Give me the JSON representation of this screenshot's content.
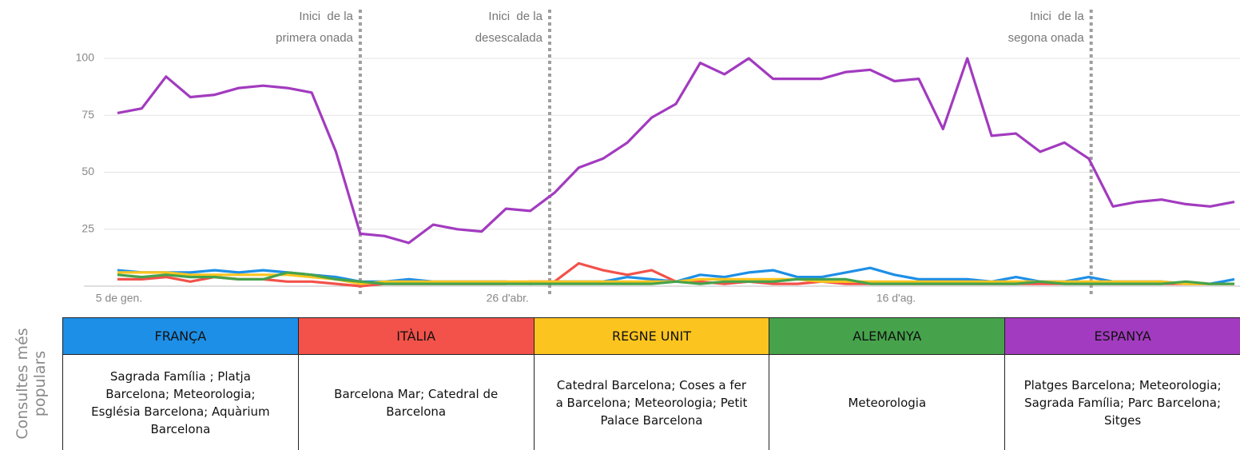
{
  "chart_data": {
    "type": "line",
    "categories": [
      "5 de gen.",
      null,
      null,
      null,
      null,
      null,
      null,
      null,
      null,
      null,
      null,
      null,
      null,
      null,
      null,
      null,
      "26 d'abr.",
      null,
      null,
      null,
      null,
      null,
      null,
      null,
      null,
      null,
      null,
      null,
      null,
      null,
      null,
      null,
      "16 d'ag.",
      null,
      null,
      null,
      null,
      null,
      null,
      null,
      null,
      null,
      null,
      null,
      null,
      null,
      null
    ],
    "ylim": [
      0,
      100
    ],
    "yticks": [
      25,
      50,
      75,
      100
    ],
    "grid": true,
    "series": [
      {
        "name": "FRANÇA",
        "color": "#1e8fe6",
        "values": [
          7,
          6,
          6,
          6,
          7,
          6,
          7,
          6,
          5,
          4,
          2,
          2,
          3,
          2,
          2,
          2,
          2,
          1,
          2,
          2,
          2,
          4,
          3,
          2,
          5,
          4,
          6,
          7,
          4,
          4,
          6,
          8,
          5,
          3,
          3,
          3,
          2,
          4,
          2,
          2,
          4,
          2,
          2,
          2,
          1,
          1,
          3
        ]
      },
      {
        "name": "ITÀLIA",
        "color": "#f2524a",
        "values": [
          3,
          3,
          4,
          2,
          4,
          3,
          3,
          2,
          2,
          1,
          0,
          1,
          1,
          1,
          1,
          1,
          1,
          2,
          2,
          10,
          7,
          5,
          7,
          2,
          2,
          1,
          2,
          1,
          1,
          2,
          1,
          1,
          1,
          1,
          1,
          1,
          1,
          1,
          1,
          1,
          1,
          1,
          1,
          1,
          1,
          1,
          1
        ]
      },
      {
        "name": "REGNE UNIT",
        "color": "#fcc41f",
        "values": [
          6,
          6,
          6,
          5,
          5,
          5,
          5,
          5,
          4,
          3,
          1,
          2,
          2,
          2,
          2,
          2,
          2,
          2,
          2,
          2,
          2,
          2,
          2,
          2,
          3,
          3,
          3,
          3,
          3,
          2,
          2,
          2,
          2,
          2,
          2,
          2,
          2,
          2,
          2,
          2,
          2,
          2,
          2,
          2,
          1,
          1,
          1
        ]
      },
      {
        "name": "ALEMANYA",
        "color": "#46a34c",
        "values": [
          5,
          4,
          5,
          4,
          4,
          3,
          3,
          6,
          5,
          3,
          2,
          1,
          1,
          1,
          1,
          1,
          1,
          1,
          1,
          1,
          1,
          1,
          1,
          2,
          1,
          2,
          2,
          2,
          3,
          3,
          3,
          1,
          1,
          1,
          1,
          1,
          1,
          1,
          2,
          1,
          1,
          1,
          1,
          1,
          2,
          1,
          1
        ]
      },
      {
        "name": "ESPANYA",
        "color": "#a23bbf",
        "values": [
          76,
          78,
          92,
          83,
          84,
          87,
          88,
          87,
          85,
          59,
          23,
          22,
          19,
          27,
          25,
          24,
          34,
          33,
          41,
          52,
          56,
          63,
          74,
          80,
          98,
          93,
          100,
          91,
          91,
          91,
          94,
          95,
          90,
          91,
          69,
          100,
          66,
          67,
          59,
          63,
          56,
          35,
          37,
          38,
          36,
          35,
          37
        ]
      }
    ],
    "annotations": [
      {
        "x": 10,
        "lines": [
          "Inici  de la",
          "primera onada"
        ]
      },
      {
        "x": 17.8,
        "lines": [
          "Inici  de la",
          "desescalada"
        ]
      },
      {
        "x": 40.1,
        "lines": [
          "Inici  de la",
          "segona onada"
        ]
      }
    ],
    "table": {
      "row_label": "Consultes més populars",
      "queries": [
        "Sagrada Família ; Platja Barcelona; Meteorologia; Església Barcelona; Aquàrium Barcelona",
        "Barcelona Mar; Catedral de Barcelona",
        "Catedral Barcelona; Coses a fer a Barcelona; Meteorologia; Petit Palace Barcelona",
        "Meteorologia",
        "Platges Barcelona; Meteorologia; Sagrada Família; Parc Barcelona; Sitges"
      ]
    }
  }
}
